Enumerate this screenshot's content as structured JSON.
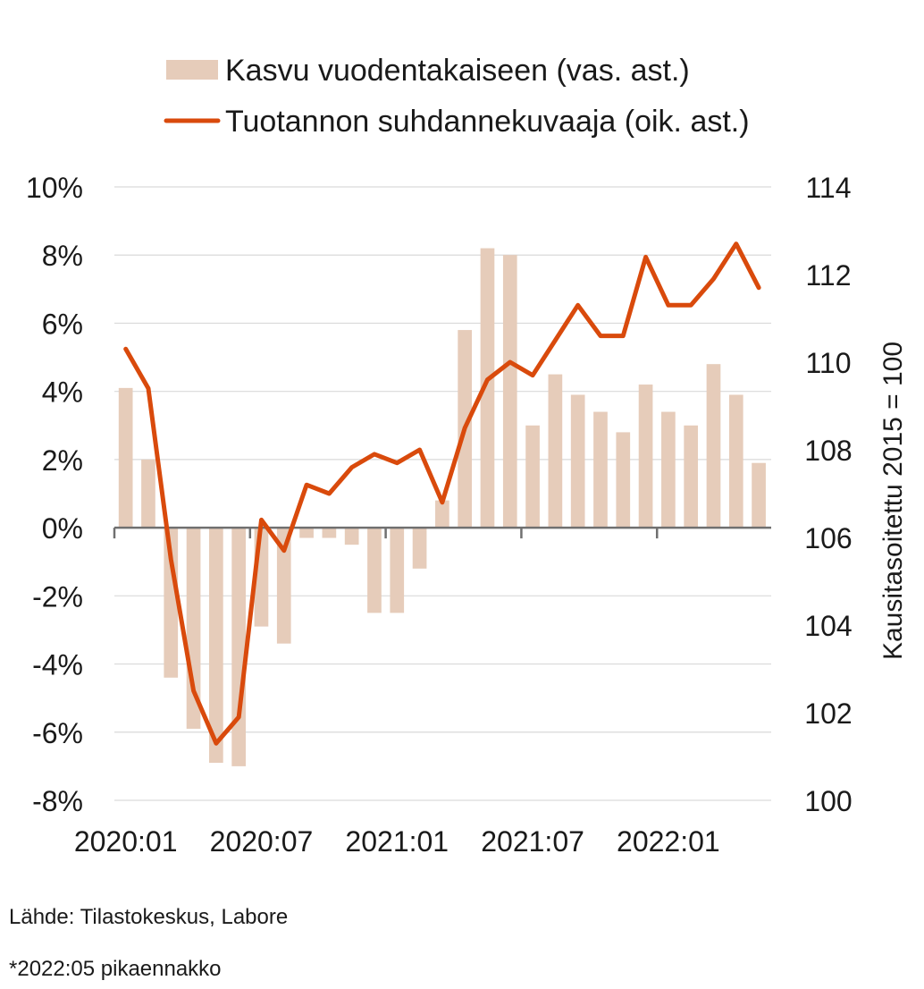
{
  "chart_data": {
    "type": "bar",
    "legend": {
      "placement": "top",
      "bar_label": "Kasvu vuodentakaiseen (vas. ast.)",
      "line_label": "Tuotannon suhdannekuvaaja (oik. ast.)"
    },
    "categories": [
      "2020:01",
      "2020:02",
      "2020:03",
      "2020:04",
      "2020:05",
      "2020:06",
      "2020:07",
      "2020:08",
      "2020:09",
      "2020:10",
      "2020:11",
      "2020:12",
      "2021:01",
      "2021:02",
      "2021:03",
      "2021:04",
      "2021:05",
      "2021:06",
      "2021:07",
      "2021:08",
      "2021:09",
      "2021:10",
      "2021:11",
      "2021:12",
      "2022:01",
      "2022:02",
      "2022:03",
      "2022:04",
      "2022:05"
    ],
    "x_tick_labels": [
      "2020:01",
      "2020:07",
      "2021:01",
      "2021:07",
      "2022:01"
    ],
    "series": [
      {
        "name": "Kasvu vuodentakaiseen (vas. ast.)",
        "type": "bar",
        "axis": "left",
        "color": "#e6ccba",
        "values": [
          4.1,
          2.0,
          -4.4,
          -5.9,
          -6.9,
          -7.0,
          -2.9,
          -3.4,
          -0.3,
          -0.3,
          -0.5,
          -2.5,
          -2.5,
          -1.2,
          0.8,
          5.8,
          8.2,
          8.0,
          3.0,
          4.5,
          3.9,
          3.4,
          2.8,
          4.2,
          3.4,
          3.0,
          4.8,
          3.9,
          1.9
        ]
      },
      {
        "name": "Tuotannon suhdannekuvaaja (oik. ast.)",
        "type": "line",
        "axis": "right",
        "color": "#d94a0c",
        "values": [
          110.3,
          109.4,
          105.5,
          102.5,
          101.3,
          101.9,
          106.4,
          105.7,
          107.2,
          107.0,
          107.6,
          107.9,
          107.7,
          108.0,
          106.8,
          108.5,
          109.6,
          110.0,
          109.7,
          110.5,
          111.3,
          110.6,
          110.6,
          112.4,
          111.3,
          111.3,
          111.9,
          112.7,
          111.7
        ]
      }
    ],
    "left_axis": {
      "ylim": [
        -8,
        10
      ],
      "ticks": [
        10,
        8,
        6,
        4,
        2,
        0,
        -2,
        -4,
        -6,
        -8
      ],
      "tick_labels": [
        "10%",
        "8%",
        "6%",
        "4%",
        "2%",
        "0%",
        "-2%",
        "-4%",
        "-6%",
        "-8%"
      ]
    },
    "right_axis": {
      "ylim": [
        100,
        114
      ],
      "ticks": [
        114,
        112,
        110,
        108,
        106,
        104,
        102,
        100
      ],
      "tick_labels": [
        "114",
        "112",
        "110",
        "108",
        "106",
        "104",
        "102",
        "100"
      ],
      "label": "Kausitasoitettu 2015 = 100"
    },
    "grid": true
  },
  "notes": {
    "source": "Lähde: Tilastokeskus, Labore",
    "footnote": "*2022:05 pikaennakko"
  }
}
